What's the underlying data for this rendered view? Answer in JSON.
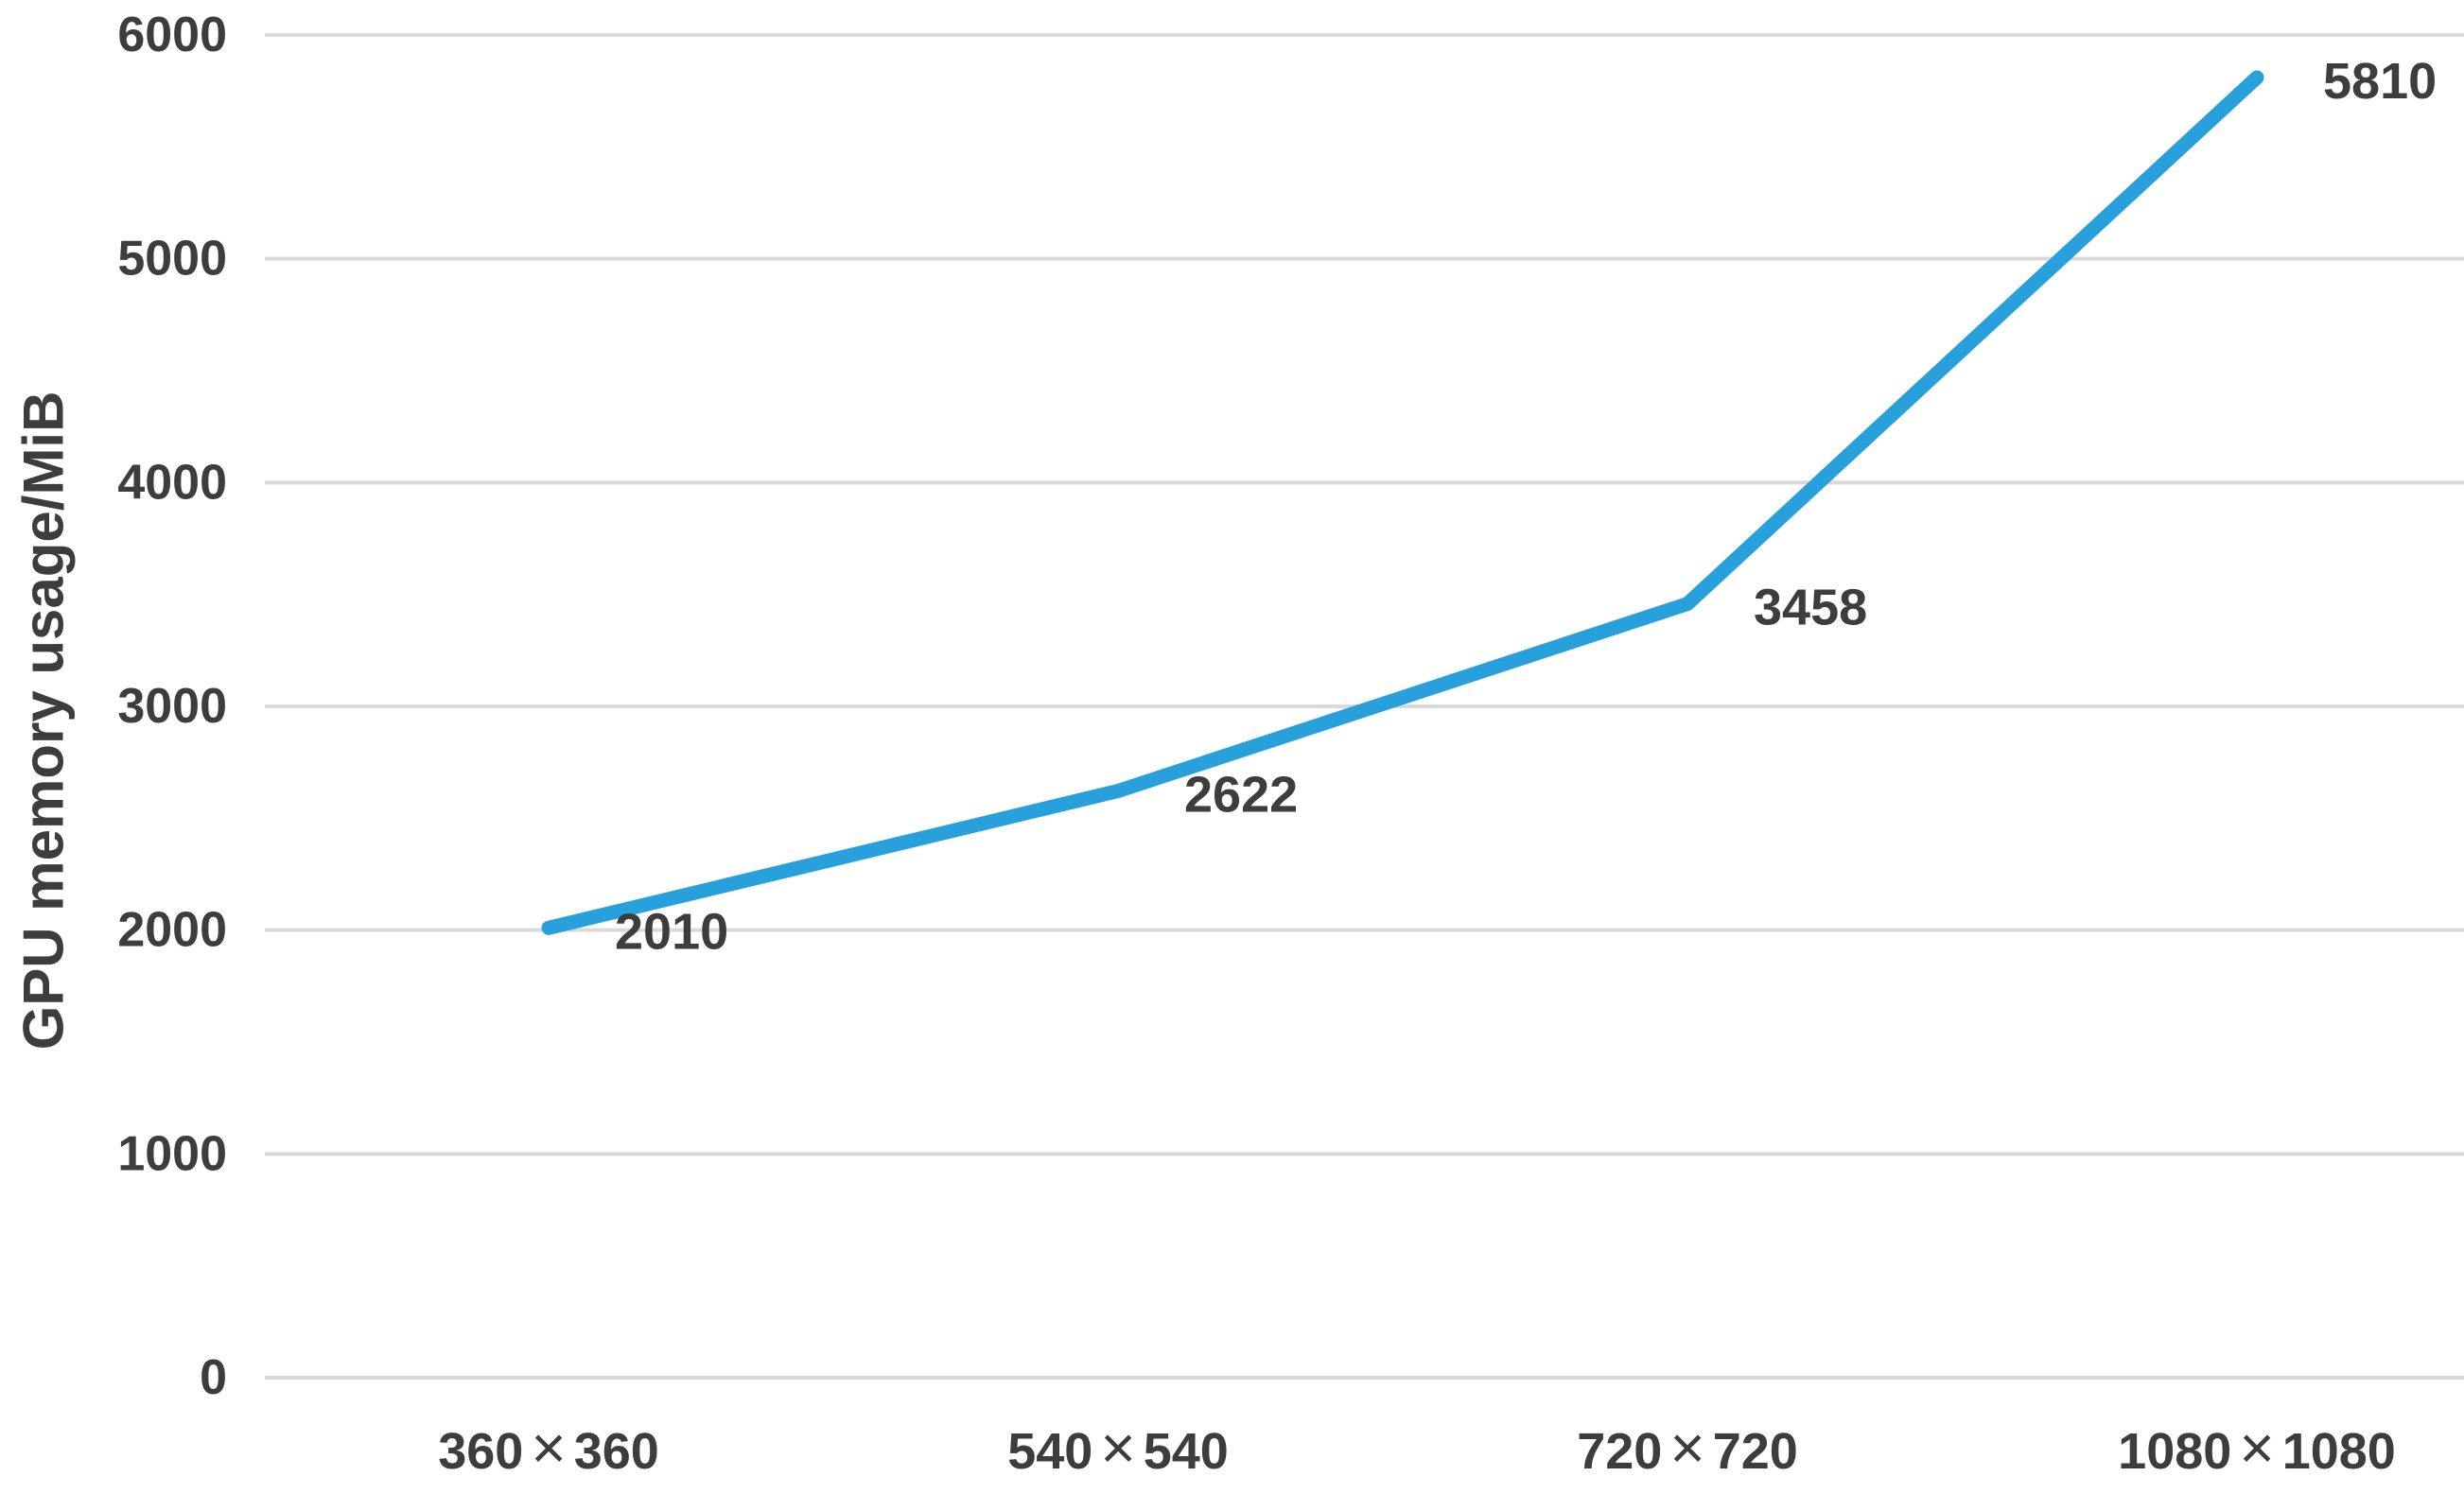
{
  "chart_data": {
    "type": "line",
    "title": "",
    "categories": [
      "360×360",
      "540×540",
      "720×720",
      "1080×1080"
    ],
    "series": [
      {
        "name": "GPU memory usage",
        "values": [
          2010,
          2622,
          3458,
          5810
        ]
      }
    ],
    "data_labels": [
      "2010",
      "2622",
      "3458",
      "5810"
    ],
    "xlabel": "",
    "ylabel": "GPU memory usage/MiB",
    "ylim": [
      0,
      6000
    ],
    "yticks": [
      0,
      1000,
      2000,
      3000,
      4000,
      5000,
      6000
    ],
    "ytick_labels": [
      "0",
      "1000",
      "2000",
      "3000",
      "4000",
      "5000",
      "6000"
    ],
    "grid": "horizontal",
    "legend": "none",
    "colors": {
      "line": "#27A0DB",
      "grid": "#D9D9D9",
      "text": "#3D3D3D"
    }
  }
}
